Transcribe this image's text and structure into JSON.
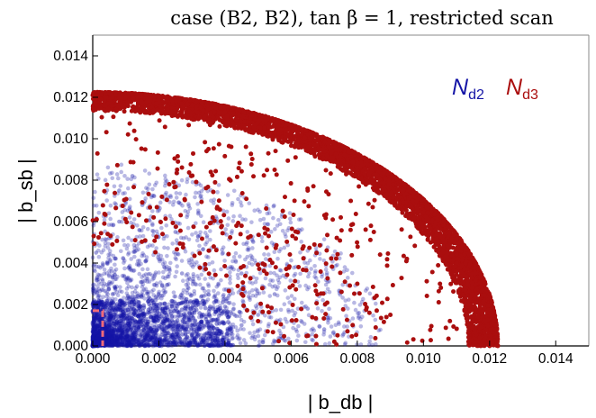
{
  "chart_data": {
    "type": "scatter",
    "title": "case (B2, B2), tan β = 1, restricted scan",
    "xlabel": "| b_db |",
    "ylabel": "| b_sb |",
    "xlim": [
      0,
      0.015
    ],
    "ylim": [
      0,
      0.015
    ],
    "x_ticks": [
      "0.000",
      "0.002",
      "0.004",
      "0.006",
      "0.008",
      "0.010",
      "0.012",
      "0.014"
    ],
    "y_ticks": [
      "0.000",
      "0.002",
      "0.004",
      "0.006",
      "0.008",
      "0.010",
      "0.012",
      "0.014"
    ],
    "grid": false,
    "legend_position": "top-right",
    "series": [
      {
        "name": "N_d2",
        "label_main": "N",
        "label_sub": "d2",
        "color": "#1515a6",
        "description": "dense cloud near origin, extending up to radius ~0.009",
        "x": [
          0.0002,
          0.0004,
          0.0007,
          0.0009,
          0.0012,
          0.0015,
          0.0018,
          0.0022,
          0.0026,
          0.003,
          0.0003,
          0.0006,
          0.001,
          0.0014,
          0.0019,
          0.0024,
          0.0029,
          0.0035,
          0.004,
          0.0045,
          0.0001,
          0.0005,
          0.0008,
          0.0011,
          0.0016,
          0.0021,
          0.0027,
          0.0033,
          0.0038,
          0.005,
          0.0055,
          0.006,
          0.0065,
          0.007,
          0.0015,
          0.0025,
          0.0035,
          0.0045,
          0.0008,
          0.0012
        ],
        "y": [
          0.0003,
          0.0006,
          0.0002,
          0.0009,
          0.0004,
          0.0012,
          0.0007,
          0.0003,
          0.001,
          0.0005,
          0.0018,
          0.0025,
          0.0032,
          0.0015,
          0.0022,
          0.0008,
          0.0014,
          0.0006,
          0.0019,
          0.001,
          0.0045,
          0.0052,
          0.006,
          0.0038,
          0.0041,
          0.0029,
          0.0035,
          0.0024,
          0.003,
          0.0015,
          0.0025,
          0.0012,
          0.0018,
          0.0008,
          0.0068,
          0.0055,
          0.0046,
          0.0035,
          0.0075,
          0.0082
        ]
      },
      {
        "name": "N_d3",
        "label_main": "N",
        "label_sub": "d3",
        "color": "#aa0e0e",
        "description": "dense arc band at radius ~0.0115–0.0122, with scattered points inward",
        "x": [
          0.0,
          0.001,
          0.002,
          0.003,
          0.004,
          0.005,
          0.006,
          0.007,
          0.008,
          0.009,
          0.01,
          0.011,
          0.0115,
          0.012,
          0.0035,
          0.0055,
          0.0065,
          0.0075,
          0.0085,
          0.0095,
          0.0105,
          0.0045,
          0.008,
          0.009,
          0.0108
        ],
        "y": [
          0.0121,
          0.012,
          0.0119,
          0.0116,
          0.0113,
          0.0108,
          0.0102,
          0.0094,
          0.0085,
          0.0073,
          0.0058,
          0.004,
          0.0025,
          0.0,
          0.0095,
          0.0085,
          0.0075,
          0.0062,
          0.0055,
          0.0042,
          0.003,
          0.0058,
          0.003,
          0.0015,
          0.0012
        ]
      }
    ],
    "highlight_box": {
      "color": "#f06a7a",
      "x": [
        0,
        0.0003
      ],
      "y": [
        0,
        0.0017
      ]
    }
  }
}
